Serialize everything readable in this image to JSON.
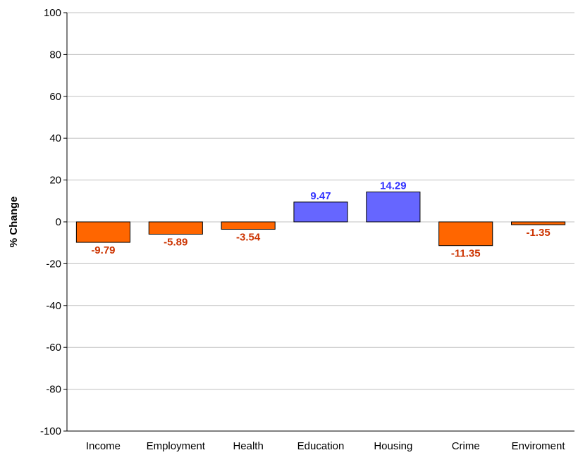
{
  "chart_data": {
    "type": "bar",
    "title": "",
    "xlabel": "",
    "ylabel": "% Change",
    "ylim": [
      -100,
      100
    ],
    "yticks": [
      100,
      80,
      60,
      40,
      20,
      0,
      -20,
      -40,
      -60,
      -80,
      -100
    ],
    "grid": true,
    "categories": [
      "Income",
      "Employment",
      "Health",
      "Education",
      "Housing",
      "Crime",
      "Enviroment"
    ],
    "values": [
      -9.79,
      -5.89,
      -3.54,
      9.47,
      14.29,
      -11.35,
      -1.35
    ],
    "data_labels": [
      "-9.79",
      "-5.89",
      "-3.54",
      "9.47",
      "14.29",
      "-11.35",
      "-1.35"
    ],
    "colors": {
      "negative_fill": "#ff6600",
      "positive_fill": "#6666ff",
      "negative_label": "#cc3300",
      "positive_label": "#3333ff",
      "gridline": "#c0c0c0",
      "axis": "#000000"
    }
  }
}
